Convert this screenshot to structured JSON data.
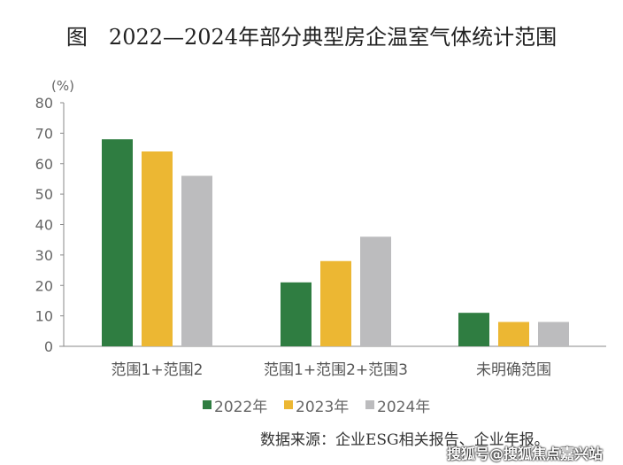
{
  "chart_data": {
    "type": "bar",
    "title": "图　2022—2024年部分典型房企温室气体统计范围",
    "ylabel": "(%)",
    "ylim": [
      0,
      80
    ],
    "yticks": [
      0,
      10,
      20,
      30,
      40,
      50,
      60,
      70,
      80
    ],
    "grid": false,
    "legend_position": "bottom",
    "categories": [
      "范围1+范围2",
      "范围1+范围2+范围3",
      "未明确范围"
    ],
    "series": [
      {
        "name": "2022年",
        "color": "#2f7d41",
        "values": [
          68,
          21,
          11
        ]
      },
      {
        "name": "2023年",
        "color": "#ecb733",
        "values": [
          64,
          28,
          8
        ]
      },
      {
        "name": "2024年",
        "color": "#bcbcbe",
        "values": [
          56,
          36,
          8
        ]
      }
    ]
  },
  "source": "数据来源：企业ESG相关报告、企业年报。",
  "watermark": "搜狐号@搜狐焦点嘉兴站"
}
